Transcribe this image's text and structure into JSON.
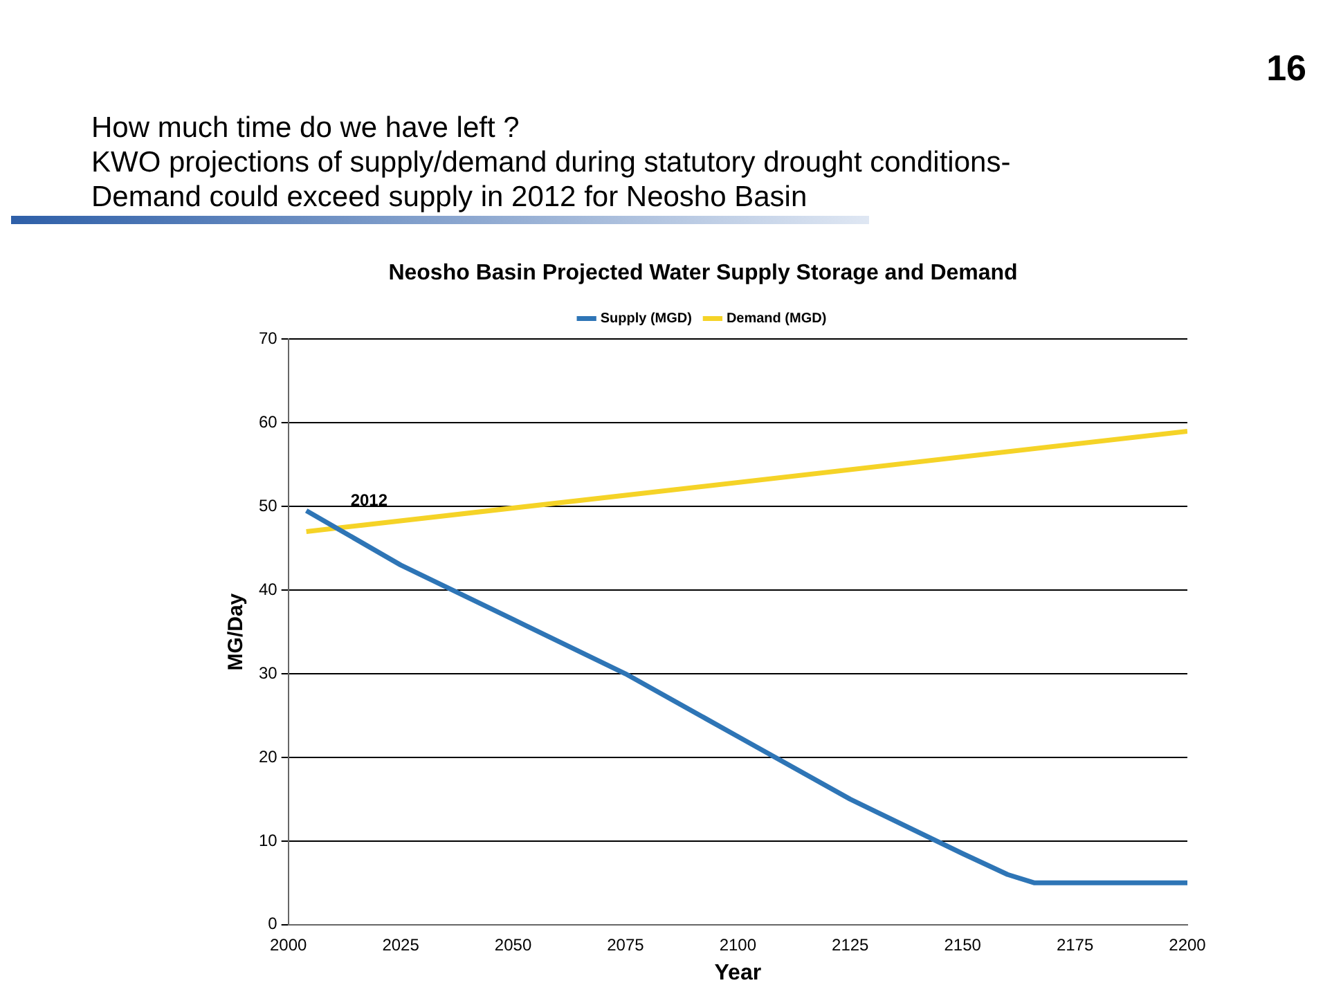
{
  "chart_data": {
    "type": "line",
    "title": "Neosho Basin Projected Water Supply Storage and Demand",
    "xlabel": "Year",
    "ylabel": "MG/Day",
    "annotations": [
      "How much time do we have left ?",
      "KWO projections of supply/demand during statutory drought conditions-",
      "Demand could exceed supply in 2012 for Neosho Basin",
      "16",
      {
        "text": "2012",
        "x": 2012,
        "y": 47
      }
    ],
    "series": [
      {
        "name": "Supply (MGD)",
        "color": "#2e75b6",
        "x": [
          2004,
          2025,
          2050,
          2075,
          2100,
          2125,
          2150,
          2160,
          2166,
          2200
        ],
        "values": [
          49.5,
          43,
          36.5,
          30,
          22.5,
          15,
          8.5,
          6,
          5,
          5
        ]
      },
      {
        "name": "Demand (MGD)",
        "color": "#f5d327",
        "x": [
          2004,
          2200
        ],
        "values": [
          47,
          59
        ]
      }
    ],
    "xlim": [
      2000,
      2200
    ],
    "xticks": [
      2000,
      2025,
      2050,
      2075,
      2100,
      2125,
      2150,
      2175,
      2200
    ],
    "ylim": [
      0,
      70
    ],
    "yticks": [
      0,
      10,
      20,
      30,
      40,
      50,
      60,
      70
    ],
    "grid": "y",
    "legend": "top",
    "marker": "none",
    "line_style": "solid"
  }
}
